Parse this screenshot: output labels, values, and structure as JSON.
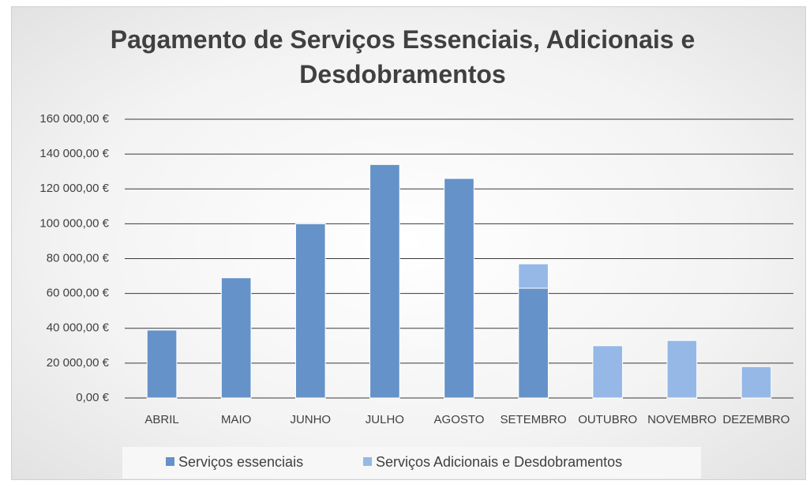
{
  "chart_data": {
    "type": "stacked_bar",
    "title": "Pagamento de Serviços Essenciais, Adicionais e Desdobramentos",
    "categories": [
      "ABRIL",
      "MAIO",
      "JUNHO",
      "JULHO",
      "AGOSTO",
      "SETEMBRO",
      "OUTUBRO",
      "NOVEMBRO",
      "DEZEMBRO"
    ],
    "series": [
      {
        "name": "Serviços essenciais",
        "color": "#6592c8",
        "values": [
          39000,
          69000,
          100000,
          134000,
          126000,
          63000,
          null,
          null,
          null
        ]
      },
      {
        "name": "Serviços Adicionais e Desdobramentos",
        "color": "#95b8e6",
        "values": [
          null,
          null,
          null,
          null,
          null,
          14000,
          30000,
          33000,
          18000
        ]
      }
    ],
    "ylim": [
      0,
      160000
    ],
    "yticks": [
      {
        "value": 0,
        "label": "0,00 €"
      },
      {
        "value": 20000,
        "label": "20 000,00 €"
      },
      {
        "value": 40000,
        "label": "40 000,00 €"
      },
      {
        "value": 60000,
        "label": "60 000,00 €"
      },
      {
        "value": 80000,
        "label": "80 000,00 €"
      },
      {
        "value": 100000,
        "label": "100 000,00 €"
      },
      {
        "value": 120000,
        "label": "120 000,00 €"
      },
      {
        "value": 140000,
        "label": "140 000,00 €"
      },
      {
        "value": 160000,
        "label": "160 000,00 €"
      }
    ],
    "grid": true,
    "legend": "bottom"
  }
}
